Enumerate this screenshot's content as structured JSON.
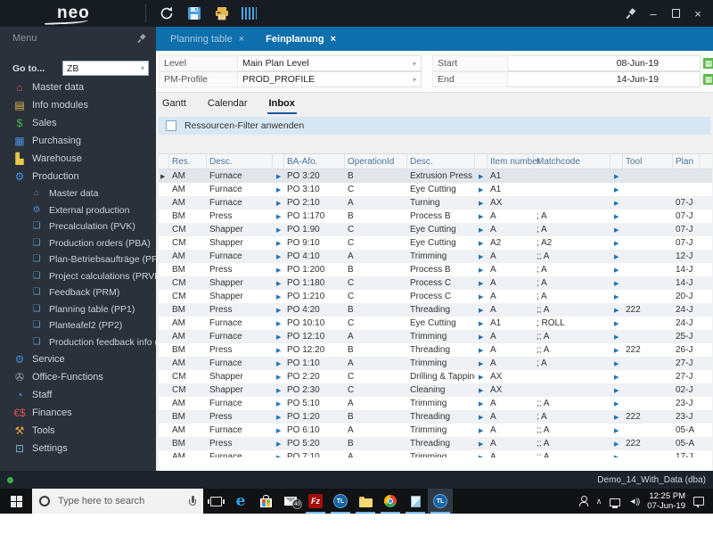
{
  "window": {
    "logo": "neo",
    "doc_tabs": [
      {
        "label": "Planning table",
        "close": "×",
        "active": false
      },
      {
        "label": "Feinplanung",
        "close": "×",
        "active": true
      }
    ],
    "controls": {
      "minimize": "–",
      "close": "×"
    }
  },
  "sidebar": {
    "header": "Menu",
    "goto_label": "Go to...",
    "goto_value": "ZB",
    "items": [
      {
        "label": "Master data",
        "icon": "home-icon",
        "color": "#d9534f",
        "level": 0
      },
      {
        "label": "Info modules",
        "icon": "chart-icon",
        "color": "#e8b64c",
        "level": 0
      },
      {
        "label": "Sales",
        "icon": "dollar-icon",
        "color": "#43b649",
        "level": 0
      },
      {
        "label": "Purchasing",
        "icon": "cart-icon",
        "color": "#4a90d9",
        "level": 0
      },
      {
        "label": "Warehouse",
        "icon": "forklift-icon",
        "color": "#e8c84c",
        "level": 0
      },
      {
        "label": "Production",
        "icon": "gears-icon",
        "color": "#4a90d9",
        "level": 0
      },
      {
        "label": "Master data",
        "icon": "home-gear-icon",
        "color": "#4a90d9",
        "level": 1
      },
      {
        "label": "External production",
        "icon": "gear-icon",
        "color": "#4a90d9",
        "level": 1
      },
      {
        "label": "Precalculation (PVK)",
        "icon": "document-icon",
        "color": "#5b9bd5",
        "level": 1
      },
      {
        "label": "Production orders (PBA)",
        "icon": "document-icon",
        "color": "#5b9bd5",
        "level": 1
      },
      {
        "label": "Plan-Betriebsaufträge (PPL)",
        "icon": "document-icon",
        "color": "#5b9bd5",
        "level": 1
      },
      {
        "label": "Project calculations (PRVK)",
        "icon": "document-icon",
        "color": "#5b9bd5",
        "level": 1
      },
      {
        "label": "Feedback (PRM)",
        "icon": "document-icon",
        "color": "#5b9bd5",
        "level": 1
      },
      {
        "label": "Planning table (PP1)",
        "icon": "document-icon",
        "color": "#5b9bd5",
        "level": 1
      },
      {
        "label": "Planteafel2 (PP2)",
        "icon": "document-icon",
        "color": "#5b9bd5",
        "level": 1
      },
      {
        "label": "Production feedback info (PIRM)",
        "icon": "document-icon",
        "color": "#5b9bd5",
        "level": 1
      },
      {
        "label": "Service",
        "icon": "service-gear-icon",
        "color": "#3d8fd1",
        "level": 0
      },
      {
        "label": "Office-Functions",
        "icon": "paperclip-icon",
        "color": "#9aa5ad",
        "level": 0
      },
      {
        "label": "Staff",
        "icon": "clock-icon",
        "color": "#4a90d9",
        "level": 0
      },
      {
        "label": "Finances",
        "icon": "currency-icon",
        "color": "#d9534f",
        "level": 0
      },
      {
        "label": "Tools",
        "icon": "tools-icon",
        "color": "#e8a33c",
        "level": 0
      },
      {
        "label": "Settings",
        "icon": "monitor-icon",
        "color": "#7fb2c9",
        "level": 0
      }
    ]
  },
  "icon_glyphs": {
    "home-icon": "⌂",
    "chart-icon": "▤",
    "dollar-icon": "$",
    "cart-icon": "▦",
    "forklift-icon": "▙",
    "gears-icon": "⚙",
    "home-gear-icon": "⌂",
    "gear-icon": "⚙",
    "document-icon": "❏",
    "service-gear-icon": "⚙",
    "paperclip-icon": "✇",
    "clock-icon": "◔",
    "currency-icon": "€$",
    "tools-icon": "⚒",
    "monitor-icon": "⊡",
    "dropdown-icon": "▾",
    "minimize-icon": "–",
    "close-icon": "×",
    "up-arrow-icon": "▲",
    "down-arrow-icon": "▼",
    "left-arrow-icon": "◄",
    "right-arrow-icon": "►",
    "calendar-icon": "▦",
    "row-indicator-icon": "▶",
    "cell-arrow-icon": "▶",
    "speaker-icon": "◄))"
  },
  "filters": {
    "level_label": "Level",
    "level_value": "Main Plan Level",
    "pm_profile_label": "PM-Profile",
    "pm_profile_value": "PROD_PROFILE",
    "start_label": "Start",
    "start_value": "08-Jun-19",
    "end_label": "End",
    "end_value": "14-Jun-19"
  },
  "view_tabs": [
    "Gantt",
    "Calendar",
    "Inbox"
  ],
  "view_tabs_active": "Inbox",
  "filter_checkbox_label": "Ressourcen-Filter anwenden",
  "filter_checkbox_checked": false,
  "table": {
    "columns": [
      "",
      "Res.",
      "Desc.",
      "",
      "BA-Afo.",
      "OperationId",
      "Desc.",
      "",
      "Item number",
      "Matchcode",
      "",
      "Tool",
      "Plan"
    ],
    "rows": [
      [
        "AM",
        "Furnace",
        "PO 3:20",
        "B",
        "Extrusion Press",
        "A1",
        "",
        "",
        ""
      ],
      [
        "AM",
        "Furnace",
        "PO 3:10",
        "C",
        "Eye Cutting",
        "A1",
        "",
        "",
        ""
      ],
      [
        "AM",
        "Furnace",
        "PO 2:10",
        "A",
        "Turning",
        "AX",
        "",
        "",
        "07-J"
      ],
      [
        "BM",
        "Press",
        "PO 1:170",
        "B",
        "Process B",
        "A",
        "; A",
        "",
        "07-J"
      ],
      [
        "CM",
        "Shapper",
        "PO 1:90",
        "C",
        "Eye Cutting",
        "A",
        "; A",
        "",
        "07-J"
      ],
      [
        "CM",
        "Shapper",
        "PO 9:10",
        "C",
        "Eye Cutting",
        "A2",
        "; A2",
        "",
        "07-J"
      ],
      [
        "AM",
        "Furnace",
        "PO 4:10",
        "A",
        "Trimming",
        "A",
        ";; A",
        "",
        "12-J"
      ],
      [
        "BM",
        "Press",
        "PO 1:200",
        "B",
        "Process B",
        "A",
        "; A",
        "",
        "14-J"
      ],
      [
        "CM",
        "Shapper",
        "PO 1:180",
        "C",
        "Process C",
        "A",
        "; A",
        "",
        "14-J"
      ],
      [
        "CM",
        "Shapper",
        "PO 1:210",
        "C",
        "Process C",
        "A",
        "; A",
        "",
        "20-J"
      ],
      [
        "BM",
        "Press",
        "PO 4:20",
        "B",
        "Threading",
        "A",
        ";; A",
        "222",
        "24-J"
      ],
      [
        "AM",
        "Furnace",
        "PO 10:10",
        "C",
        "Eye Cutting",
        "A1",
        "; ROLL",
        "",
        "24-J"
      ],
      [
        "AM",
        "Furnace",
        "PO 12:10",
        "A",
        "Trimming",
        "A",
        ";; A",
        "",
        "25-J"
      ],
      [
        "BM",
        "Press",
        "PO 12:20",
        "B",
        "Threading",
        "A",
        ";; A",
        "222",
        "26-J"
      ],
      [
        "AM",
        "Furnace",
        "PO 1:10",
        "A",
        "Trimming",
        "A",
        "; A",
        "",
        "27-J"
      ],
      [
        "CM",
        "Shapper",
        "PO 2:20",
        "C",
        "Drilling & Tapping",
        "AX",
        "",
        "",
        "27-J"
      ],
      [
        "CM",
        "Shapper",
        "PO 2:30",
        "C",
        "Cleaning",
        "AX",
        "",
        "",
        "02-J"
      ],
      [
        "AM",
        "Furnace",
        "PO 5:10",
        "A",
        "Trimming",
        "A",
        ";; A",
        "",
        "23-J"
      ],
      [
        "BM",
        "Press",
        "PO 1:20",
        "B",
        "Threading",
        "A",
        "; A",
        "222",
        "23-J"
      ],
      [
        "AM",
        "Furnace",
        "PO 6:10",
        "A",
        "Trimming",
        "A",
        ";; A",
        "",
        "05-A"
      ],
      [
        "BM",
        "Press",
        "PO 5:20",
        "B",
        "Threading",
        "A",
        ";; A",
        "222",
        "05-A"
      ],
      [
        "AM",
        "Furnace",
        "PO 7:10",
        "A",
        "Trimming",
        "A",
        ";; A",
        "",
        "17-J"
      ]
    ],
    "selected_row_index": 0
  },
  "status_bar": {
    "text": "Demo_14_With_Data (dba)"
  },
  "taskbar": {
    "search_placeholder": "Type here to search",
    "edge_label": "e",
    "filezilla_label": "Fz",
    "tl_label": "TL",
    "mail_badge": "40",
    "clock_time": "12:25 PM",
    "clock_date": "07-Jun-19"
  }
}
